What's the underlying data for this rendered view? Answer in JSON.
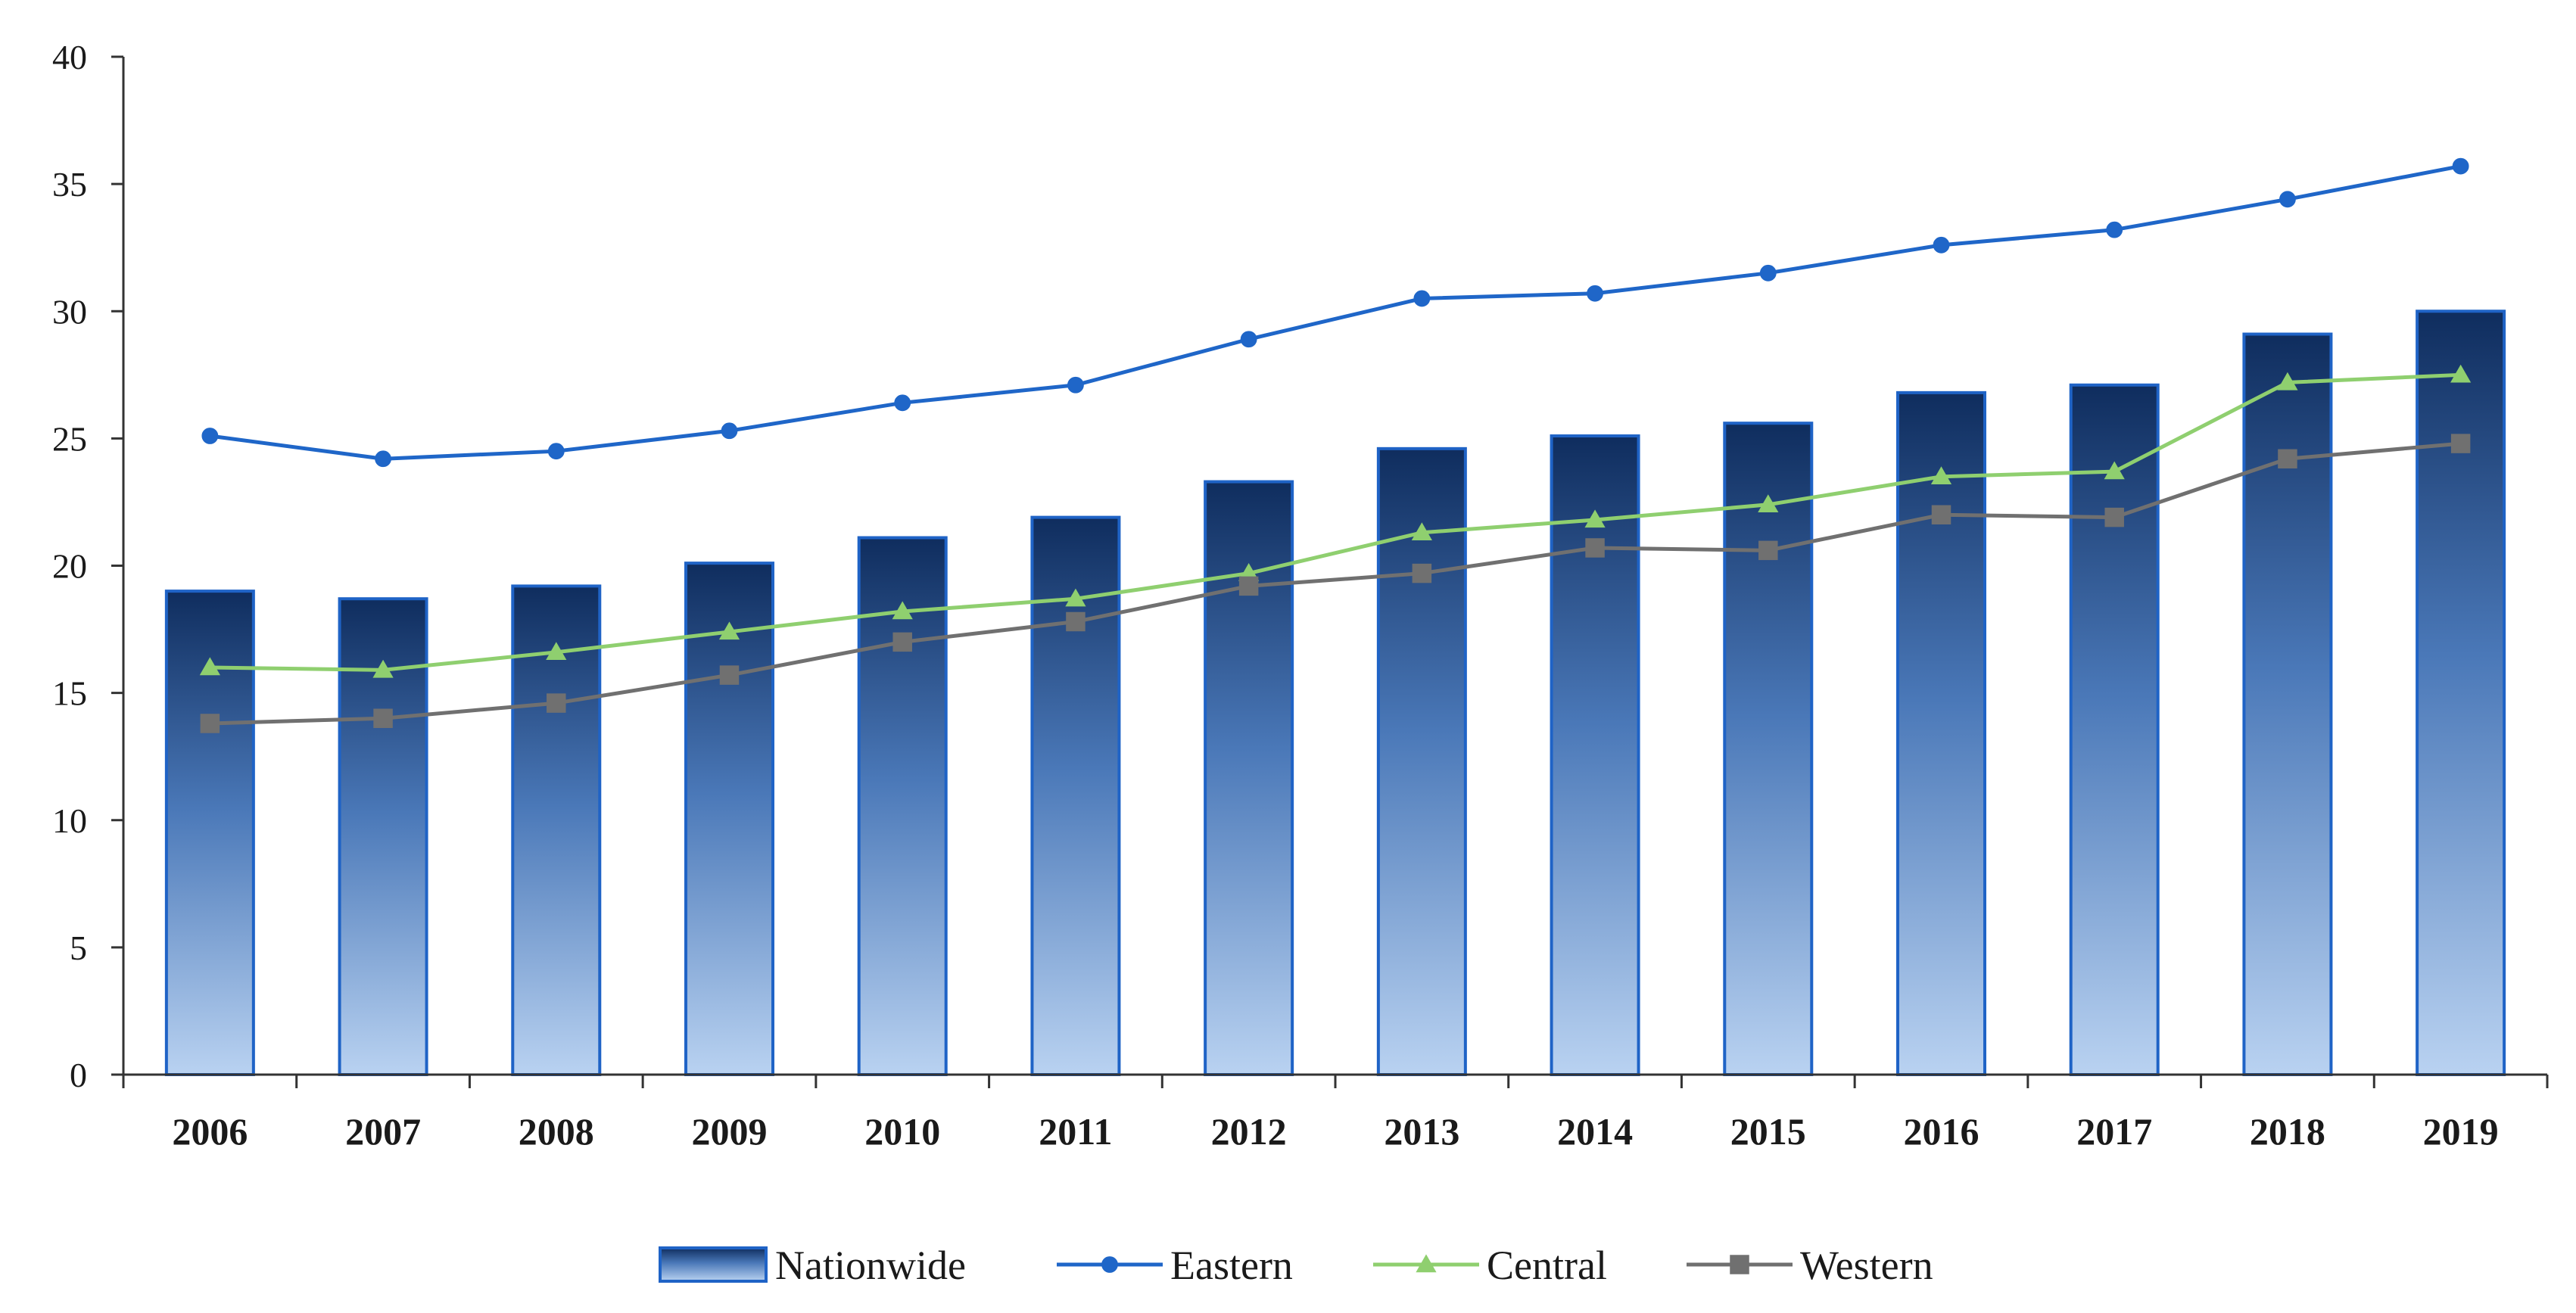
{
  "chart_data": {
    "type": "bar",
    "categories": [
      "2006",
      "2007",
      "2008",
      "2009",
      "2010",
      "2011",
      "2012",
      "2013",
      "2014",
      "2015",
      "2016",
      "2017",
      "2018",
      "2019"
    ],
    "ylim": [
      0,
      40
    ],
    "yticks": [
      0,
      5,
      10,
      15,
      20,
      25,
      30,
      35,
      40
    ],
    "title": "",
    "xlabel": "",
    "ylabel": "",
    "grid": false,
    "legend_position": "bottom",
    "series": [
      {
        "name": "Nationwide",
        "type": "bar",
        "color_top": "#0f2d5e",
        "color_bottom": "#b9d2f1",
        "border": "#1f63c6",
        "values": [
          19.0,
          18.7,
          19.2,
          20.1,
          21.1,
          21.9,
          23.3,
          24.6,
          25.1,
          25.6,
          26.8,
          27.1,
          29.1,
          30.0
        ]
      },
      {
        "name": "Eastern",
        "type": "line",
        "marker": "circle",
        "color": "#1f66c8",
        "values": [
          25.1,
          24.2,
          24.5,
          25.3,
          26.4,
          27.1,
          28.9,
          30.5,
          30.7,
          31.5,
          32.6,
          33.2,
          34.4,
          35.7
        ]
      },
      {
        "name": "Central",
        "type": "line",
        "marker": "triangle",
        "color": "#8fcf6f",
        "values": [
          16.0,
          15.9,
          16.6,
          17.4,
          18.2,
          18.7,
          19.7,
          21.3,
          21.8,
          22.4,
          23.5,
          23.7,
          27.2,
          27.5
        ]
      },
      {
        "name": "Western",
        "type": "line",
        "marker": "square",
        "color": "#707070",
        "values": [
          13.8,
          14.0,
          14.6,
          15.7,
          17.0,
          17.8,
          19.2,
          19.7,
          20.7,
          20.6,
          22.0,
          21.9,
          24.2,
          24.8
        ]
      }
    ]
  }
}
